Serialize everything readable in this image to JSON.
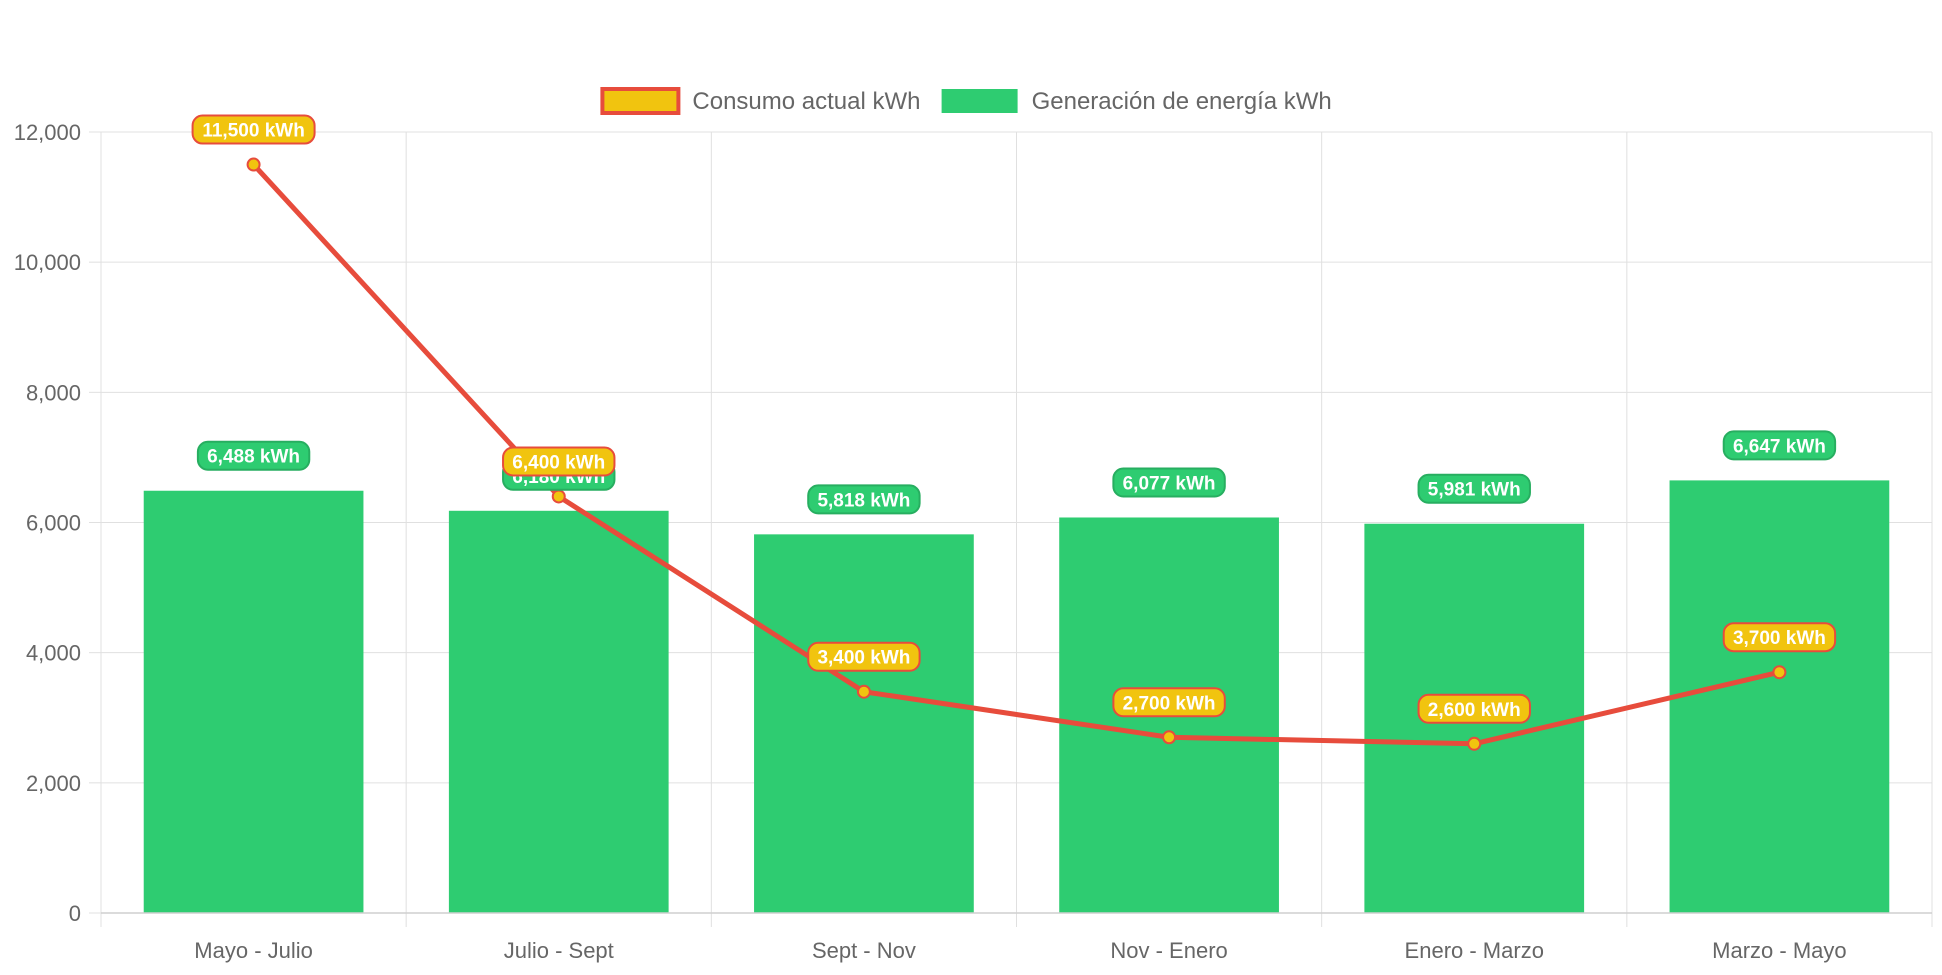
{
  "chart_data": {
    "type": "bar",
    "categories": [
      "Mayo - Julio",
      "Julio - Sept",
      "Sept - Nov",
      "Nov - Enero",
      "Enero - Marzo",
      "Marzo - Mayo"
    ],
    "series": [
      {
        "name": "Consumo actual kWh",
        "type": "line",
        "values": [
          11500,
          6400,
          3400,
          2700,
          2600,
          3700
        ],
        "labels": [
          "11,500 kWh",
          "6,400 kWh",
          "3,400 kWh",
          "2,700 kWh",
          "2,600 kWh",
          "3,700 kWh"
        ],
        "color": "#e74c3c",
        "fill_color": "#f1c40f"
      },
      {
        "name": "Generación de energía kWh",
        "type": "bar",
        "values": [
          6488,
          6180,
          5818,
          6077,
          5981,
          6647
        ],
        "labels": [
          "6,488 kWh",
          "6,180 kWh",
          "5,818 kWh",
          "6,077 kWh",
          "5,981 kWh",
          "6,647 kWh"
        ],
        "color": "#2ecc71",
        "label_color": "#27ae60"
      }
    ],
    "y_ticks": [
      "0",
      "2,000",
      "4,000",
      "6,000",
      "8,000",
      "10,000",
      "12,000"
    ],
    "ylim": [
      0,
      12000
    ],
    "grid": true,
    "legend_position": "top-center"
  }
}
